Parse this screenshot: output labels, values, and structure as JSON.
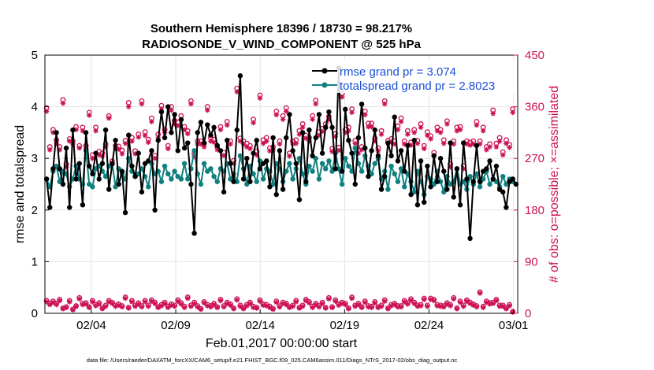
{
  "chart_data": {
    "type": "line",
    "title_line1": "Southern Hemisphere 18396 / 18730 = 98.217%",
    "title_line2": "RADIOSONDE_V_WIND_COMPONENT @ 525 hPa",
    "ylabel_left": "rmse and totalspread",
    "ylabel_right": "# of obs: o=possible; ×=assimilated",
    "xlabel": "Feb.01,2017 00:00:00 start",
    "footnote": "data file: /Users/raeder/DAI/ATM_forcXX/CAM6_setup/f.e21.FHIST_BGC.f09_025.CAM6assim.011/Diags_NTrS_2017-02/obs_diag_output.nc",
    "xlim": [
      1,
      29
    ],
    "ylim_left": [
      0,
      5
    ],
    "ylim_right": [
      0,
      450
    ],
    "yticks_left": [
      "0",
      "1",
      "2",
      "3",
      "4",
      "5"
    ],
    "yticks_right": [
      "0",
      "90",
      "180",
      "270",
      "360",
      "450"
    ],
    "xticks": [
      {
        "day": 3.75,
        "label": "02/04"
      },
      {
        "day": 8.75,
        "label": "02/09"
      },
      {
        "day": 13.75,
        "label": "02/14"
      },
      {
        "day": 18.75,
        "label": "02/19"
      },
      {
        "day": 23.75,
        "label": "02/24"
      },
      {
        "day": 28.75,
        "label": "03/01"
      }
    ],
    "grid": true,
    "legend_position": "top-right",
    "colors": {
      "rmse": "#000000",
      "spread": "#0f8080",
      "obs": "#cc1155",
      "legend_text": "#1a4fd6",
      "right_axis": "#cc1155"
    },
    "series": [
      {
        "name": "rmse grand pr = 3.074",
        "key": "rmse",
        "values": [
          2.6,
          2.05,
          2.8,
          3.5,
          2.8,
          2.5,
          3.2,
          2.05,
          3.55,
          2.6,
          2.9,
          2.1,
          3.5,
          2.85,
          2.7,
          3.1,
          2.6,
          2.9,
          3.55,
          2.4,
          2.9,
          3.35,
          2.5,
          2.75,
          1.95,
          3.45,
          2.85,
          2.65,
          3.1,
          2.35,
          2.9,
          2.95,
          3.15,
          2.0,
          3.35,
          3.9,
          3.4,
          4.0,
          3.5,
          3.85,
          3.15,
          3.75,
          3.2,
          3.3,
          2.5,
          1.55,
          3.5,
          3.7,
          3.3,
          3.65,
          3.45,
          3.6,
          3.25,
          3.15,
          2.35,
          3.35,
          2.9,
          2.55,
          3.55,
          4.6,
          2.6,
          3.0,
          2.55,
          3.1,
          3.35,
          2.8,
          2.9,
          2.95,
          2.45,
          3.4,
          2.3,
          3.15,
          2.4,
          3.4,
          3.85,
          3.15,
          2.9,
          2.2,
          3.5,
          2.55,
          3.55,
          3.05,
          3.4,
          3.85,
          3.1,
          3.6,
          3.9,
          3.6,
          2.8,
          4.75,
          2.75,
          3.95,
          3.35,
          3.1,
          2.5,
          3.4,
          4.05,
          3.2,
          2.65,
          3.15,
          3.55,
          3.05,
          2.4,
          2.65,
          3.3,
          3.05,
          3.8,
          2.95,
          3.15,
          2.75,
          3.25,
          2.3,
          3.35,
          2.1,
          2.95,
          2.15,
          2.85,
          2.45,
          3.05,
          2.55,
          3.0,
          2.75,
          2.4,
          3.3,
          2.25,
          2.8,
          2.1,
          3.3,
          2.6,
          1.45,
          2.55,
          3.25,
          2.55,
          2.75,
          2.8,
          2.95,
          2.6,
          2.85,
          2.4,
          2.35,
          2.05,
          2.55,
          2.6,
          2.5
        ]
      },
      {
        "name": "totalspread grand pr = 2.8023",
        "key": "spread",
        "values": [
          2.6,
          2.45,
          2.75,
          2.85,
          2.55,
          2.75,
          2.7,
          2.45,
          2.6,
          2.85,
          2.6,
          2.5,
          3.15,
          2.5,
          2.45,
          2.8,
          2.85,
          2.75,
          2.65,
          2.85,
          2.9,
          2.45,
          2.8,
          2.7,
          2.6,
          3.0,
          2.75,
          2.65,
          2.7,
          2.8,
          2.65,
          2.45,
          2.9,
          2.7,
          2.75,
          2.55,
          2.85,
          2.7,
          2.6,
          2.75,
          2.65,
          2.6,
          2.9,
          2.6,
          2.8,
          3.15,
          2.7,
          2.5,
          2.9,
          2.75,
          2.8,
          2.65,
          2.55,
          2.8,
          2.75,
          2.9,
          2.6,
          2.7,
          2.55,
          3.05,
          2.8,
          2.5,
          2.85,
          2.7,
          2.55,
          2.95,
          2.6,
          2.8,
          2.75,
          2.5,
          2.9,
          2.8,
          2.55,
          2.75,
          2.9,
          2.6,
          2.8,
          3.0,
          2.7,
          2.5,
          2.85,
          2.75,
          3.0,
          2.6,
          2.9,
          2.8,
          2.95,
          2.75,
          3.1,
          2.8,
          2.5,
          3.0,
          2.85,
          2.75,
          3.2,
          2.9,
          2.75,
          3.05,
          2.85,
          2.7,
          2.9,
          3.0,
          2.6,
          2.75,
          2.4,
          2.85,
          2.7,
          2.55,
          2.8,
          2.45,
          2.7,
          2.55,
          2.35,
          2.75,
          2.55,
          2.3,
          2.65,
          2.6,
          2.5,
          2.75,
          2.55,
          2.35,
          2.65,
          2.5,
          2.55,
          2.8,
          2.5,
          2.55,
          2.4,
          2.65,
          2.5,
          2.7,
          2.45,
          2.6,
          2.75,
          2.5,
          2.6,
          2.55,
          2.45,
          2.65,
          2.5,
          2.6,
          2.55
        ]
      },
      {
        "name": "possible",
        "key": "possible_high",
        "values": [
          358,
          290,
          320,
          302,
          290,
          372,
          260,
          304,
          300,
          325,
          292,
          324,
          292,
          350,
          276,
          324,
          282,
          279,
          295,
          344,
          265,
          292,
          291,
          284,
          301,
          367,
          306,
          283,
          312,
          370,
          316,
          303,
          340,
          275,
          312,
          362,
          320,
          292,
          360,
          336,
          333,
          344,
          325,
          318,
          370,
          278,
          300,
          300,
          296,
          360,
          306,
          303,
          290,
          325,
          280,
          334,
          300,
          266,
          392,
          305,
          300,
          296,
          292,
          338,
          282,
          380,
          302,
          306,
          288,
          290,
          352,
          300,
          344,
          358,
          279,
          300,
          302,
          318,
          330,
          310,
          306,
          344,
          371,
          316,
          322,
          330,
          343,
          287,
          313,
          289,
          383,
          320,
          324,
          356,
          301,
          284,
          290,
          352,
          331,
          331,
          305,
          288,
          318,
          370,
          301,
          304,
          300,
          326,
          340,
          300,
          318,
          298,
          320,
          301,
          330,
          292,
          316,
          309,
          280,
          324,
          320,
          302,
          335,
          260,
          300,
          324,
          325,
          257,
          300,
          298,
          300,
          334,
          300,
          324,
          290,
          295,
          354,
          296,
          306,
          281,
          302,
          294,
          356
        ]
      },
      {
        "name": "assimilated",
        "key": "assimilated_high",
        "values": [
          352,
          285,
          315,
          296,
          285,
          366,
          255,
          300,
          295,
          320,
          288,
          318,
          287,
          345,
          270,
          318,
          276,
          274,
          290,
          340,
          260,
          287,
          286,
          278,
          296,
          360,
          300,
          278,
          307,
          365,
          310,
          298,
          334,
          270,
          306,
          356,
          315,
          287,
          354,
          330,
          327,
          338,
          320,
          313,
          365,
          273,
          295,
          295,
          290,
          354,
          300,
          298,
          285,
          320,
          275,
          328,
          295,
          261,
          386,
          300,
          295,
          290,
          287,
          332,
          276,
          375,
          296,
          300,
          283,
          285,
          346,
          295,
          338,
          352,
          274,
          295,
          296,
          312,
          324,
          305,
          300,
          338,
          365,
          310,
          317,
          324,
          337,
          282,
          308,
          284,
          377,
          315,
          318,
          350,
          296,
          279,
          285,
          346,
          325,
          325,
          300,
          283,
          312,
          365,
          296,
          298,
          295,
          320,
          334,
          295,
          312,
          293,
          315,
          296,
          324,
          287,
          310,
          304,
          275,
          318,
          315,
          296,
          330,
          255,
          295,
          318,
          320,
          252,
          295,
          293,
          295,
          328,
          295,
          318,
          285,
          290,
          348,
          290,
          300,
          276,
          296,
          289,
          350
        ]
      },
      {
        "name": "possible",
        "key": "possible_low",
        "values": [
          22,
          17,
          21,
          17,
          24,
          9,
          11,
          22,
          7,
          13,
          27,
          17,
          18,
          11,
          22,
          15,
          18,
          9,
          14,
          22,
          19,
          14,
          16,
          13,
          28,
          10,
          22,
          14,
          18,
          13,
          22,
          14,
          23,
          19,
          11,
          15,
          19,
          12,
          16,
          14,
          23,
          18,
          12,
          28,
          14,
          19,
          13,
          8,
          20,
          15,
          13,
          17,
          11,
          24,
          13,
          19,
          16,
          9,
          25,
          14,
          9,
          15,
          19,
          12,
          10,
          23,
          16,
          15,
          12,
          8,
          21,
          13,
          19,
          17,
          11,
          14,
          22,
          10,
          14,
          24,
          20,
          12,
          17,
          13,
          19,
          10,
          27,
          11,
          23,
          16,
          19,
          17,
          9,
          28,
          14,
          17,
          11,
          21,
          13,
          12,
          20,
          11,
          14,
          23,
          9,
          15,
          17,
          13,
          13,
          22,
          18,
          25,
          19,
          14,
          15,
          26,
          14,
          26,
          24,
          15,
          14,
          13,
          18,
          15,
          27,
          9,
          21,
          14,
          23,
          19,
          16,
          13,
          37,
          12,
          21,
          18,
          19,
          24,
          14,
          14,
          9,
          15,
          3
        ]
      },
      {
        "name": "assimilated",
        "key": "assimilated_low",
        "values": [
          20,
          15,
          19,
          15,
          22,
          8,
          10,
          20,
          6,
          12,
          25,
          15,
          16,
          10,
          20,
          13,
          16,
          8,
          12,
          20,
          17,
          12,
          14,
          11,
          26,
          9,
          20,
          12,
          16,
          11,
          20,
          12,
          21,
          17,
          10,
          13,
          17,
          10,
          14,
          12,
          21,
          16,
          10,
          26,
          12,
          17,
          11,
          7,
          18,
          13,
          11,
          15,
          10,
          22,
          11,
          17,
          14,
          8,
          23,
          12,
          8,
          13,
          17,
          10,
          9,
          21,
          14,
          13,
          10,
          7,
          19,
          11,
          17,
          15,
          10,
          12,
          20,
          9,
          12,
          22,
          18,
          10,
          15,
          11,
          17,
          9,
          25,
          10,
          21,
          14,
          17,
          15,
          8,
          26,
          12,
          15,
          10,
          19,
          11,
          10,
          18,
          10,
          12,
          21,
          8,
          13,
          15,
          11,
          11,
          20,
          16,
          23,
          17,
          12,
          13,
          24,
          12,
          24,
          22,
          13,
          12,
          11,
          16,
          13,
          25,
          8,
          19,
          12,
          21,
          17,
          14,
          11,
          35,
          10,
          19,
          16,
          17,
          22,
          12,
          12,
          8,
          13,
          2
        ]
      }
    ]
  }
}
